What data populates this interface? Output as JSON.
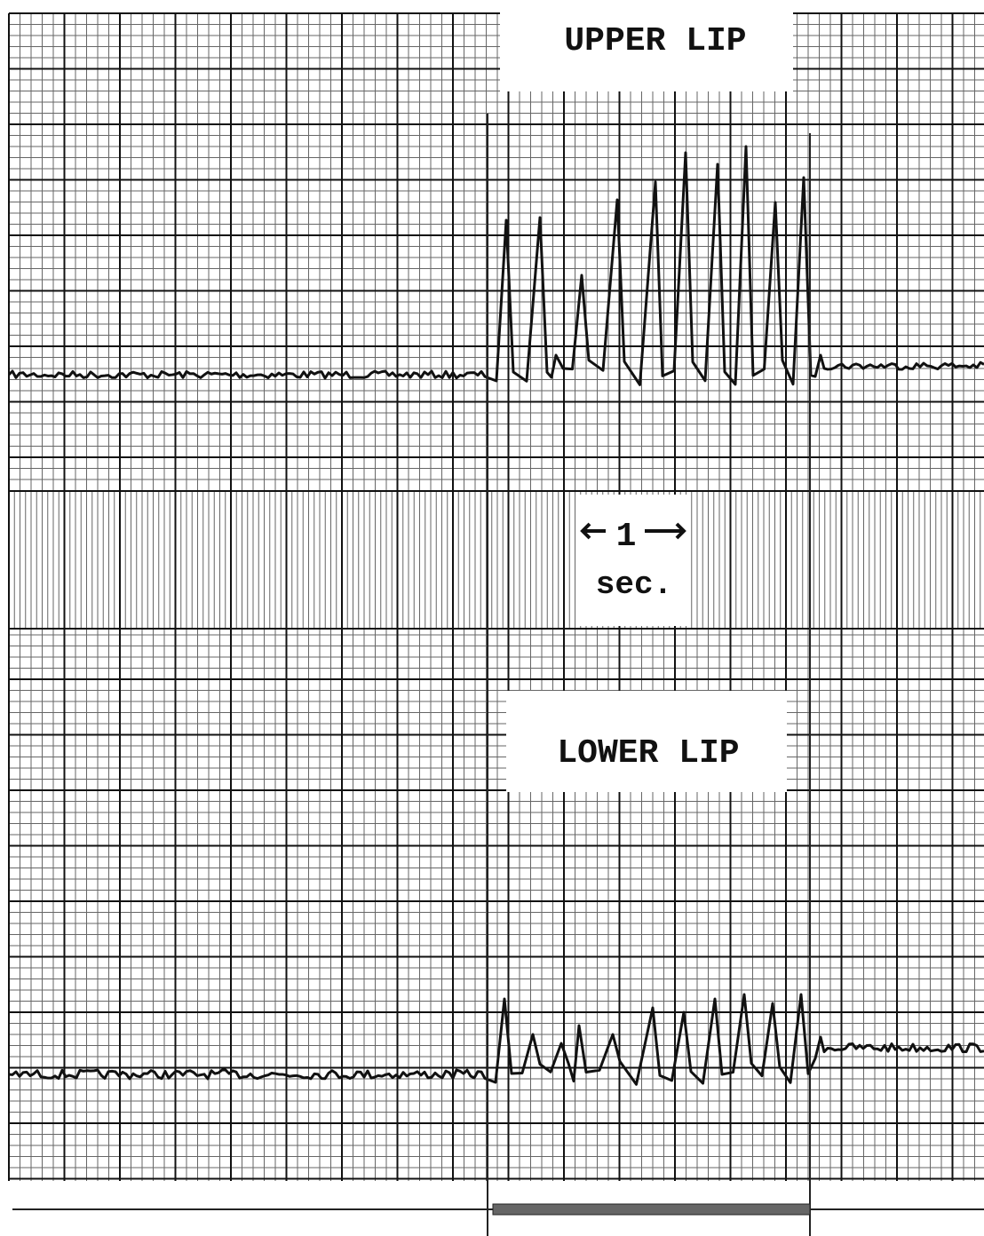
{
  "labels": {
    "upper": "UPPER LIP",
    "lower": "LOWER LIP"
  },
  "scale": {
    "value": 1,
    "unit": "sec."
  }
}
